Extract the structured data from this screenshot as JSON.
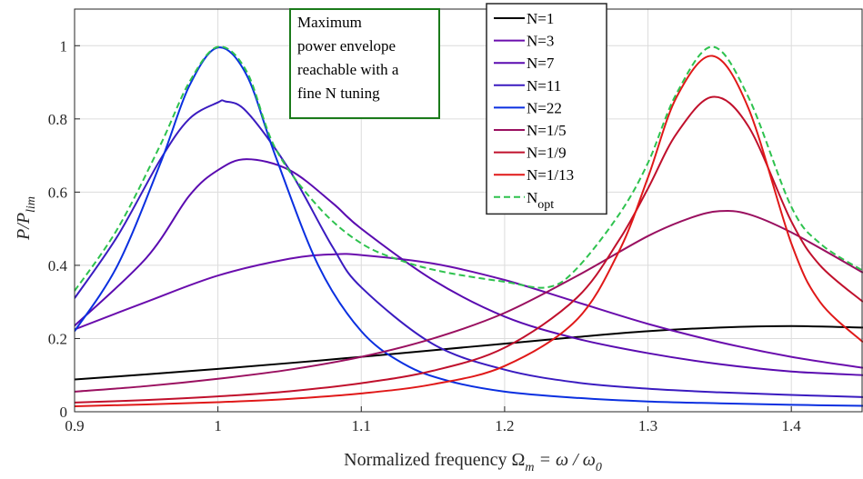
{
  "chart_data": {
    "type": "line",
    "xlabel_main": "Normalized frequency Ω",
    "xlabel_sub_m": "m",
    "xlabel_mid": " = ω / ω",
    "xlabel_sub_0": "0",
    "ylabel_main": "P/P",
    "ylabel_sub": "lim",
    "xlim": [
      0.9,
      1.45
    ],
    "ylim": [
      0,
      1.1
    ],
    "xticks": [
      0.9,
      1,
      1.1,
      1.2,
      1.3,
      1.4
    ],
    "xtick_labels": [
      "0.9",
      "1",
      "1.1",
      "1.2",
      "1.3",
      "1.4"
    ],
    "yticks": [
      0,
      0.2,
      0.4,
      0.6,
      0.8,
      1
    ],
    "ytick_labels": [
      "0",
      "0.2",
      "0.4",
      "0.6",
      "0.8",
      "1"
    ],
    "grid": true,
    "legend_position": "top-right",
    "annotation": [
      "Maximum",
      "power envelope",
      "reachable with a",
      "fine N tuning"
    ],
    "annotation_color": "#1a7a1a",
    "series": [
      {
        "name": "N=1",
        "color": "#000000",
        "dash": false,
        "x": [
          0.9,
          0.95,
          1.0,
          1.05,
          1.1,
          1.15,
          1.2,
          1.25,
          1.3,
          1.35,
          1.4,
          1.45
        ],
        "y": [
          0.088,
          0.102,
          0.117,
          0.133,
          0.15,
          0.168,
          0.186,
          0.204,
          0.22,
          0.23,
          0.234,
          0.23
        ]
      },
      {
        "name": "N=3",
        "color": "#6a0dad",
        "dash": false,
        "x": [
          0.9,
          0.95,
          1.0,
          1.05,
          1.08,
          1.1,
          1.15,
          1.2,
          1.25,
          1.3,
          1.35,
          1.4,
          1.45
        ],
        "y": [
          0.225,
          0.3,
          0.372,
          0.418,
          0.43,
          0.428,
          0.405,
          0.36,
          0.3,
          0.24,
          0.19,
          0.15,
          0.12
        ]
      },
      {
        "name": "N=7",
        "color": "#5a0bb0",
        "dash": false,
        "x": [
          0.9,
          0.95,
          0.98,
          1.0,
          1.02,
          1.05,
          1.08,
          1.1,
          1.15,
          1.2,
          1.25,
          1.3,
          1.35,
          1.4,
          1.45
        ],
        "y": [
          0.235,
          0.42,
          0.59,
          0.66,
          0.69,
          0.66,
          0.57,
          0.5,
          0.36,
          0.26,
          0.2,
          0.16,
          0.13,
          0.11,
          0.1
        ]
      },
      {
        "name": "N=11",
        "color": "#3a1bc0",
        "dash": false,
        "x": [
          0.9,
          0.93,
          0.96,
          0.98,
          1.0,
          1.005,
          1.02,
          1.05,
          1.08,
          1.1,
          1.15,
          1.2,
          1.25,
          1.3,
          1.35,
          1.4,
          1.45
        ],
        "y": [
          0.31,
          0.48,
          0.69,
          0.8,
          0.845,
          0.848,
          0.82,
          0.66,
          0.45,
          0.34,
          0.185,
          0.115,
          0.08,
          0.063,
          0.053,
          0.046,
          0.04
        ]
      },
      {
        "name": "N=22",
        "color": "#0a2fe0",
        "dash": false,
        "x": [
          0.9,
          0.93,
          0.96,
          0.98,
          1.0,
          1.02,
          1.04,
          1.07,
          1.1,
          1.13,
          1.16,
          1.2,
          1.25,
          1.3,
          1.35,
          1.4,
          1.45
        ],
        "y": [
          0.22,
          0.4,
          0.68,
          0.89,
          0.995,
          0.92,
          0.7,
          0.4,
          0.22,
          0.13,
          0.085,
          0.055,
          0.038,
          0.028,
          0.023,
          0.019,
          0.016
        ]
      },
      {
        "name": "N=1/5",
        "color": "#9a1060",
        "dash": false,
        "x": [
          0.9,
          0.95,
          1.0,
          1.05,
          1.1,
          1.15,
          1.2,
          1.25,
          1.3,
          1.33,
          1.35,
          1.37,
          1.4,
          1.45
        ],
        "y": [
          0.055,
          0.07,
          0.09,
          0.115,
          0.15,
          0.2,
          0.27,
          0.37,
          0.48,
          0.53,
          0.548,
          0.54,
          0.49,
          0.38
        ]
      },
      {
        "name": "N=1/9",
        "color": "#c0102c",
        "dash": false,
        "x": [
          0.9,
          0.95,
          1.0,
          1.05,
          1.1,
          1.15,
          1.2,
          1.25,
          1.28,
          1.3,
          1.32,
          1.345,
          1.37,
          1.4,
          1.42,
          1.45
        ],
        "y": [
          0.025,
          0.032,
          0.042,
          0.056,
          0.078,
          0.112,
          0.175,
          0.31,
          0.47,
          0.61,
          0.76,
          0.86,
          0.78,
          0.52,
          0.4,
          0.3
        ]
      },
      {
        "name": "N=1/13",
        "color": "#e01818",
        "dash": false,
        "x": [
          0.9,
          0.95,
          1.0,
          1.05,
          1.1,
          1.15,
          1.2,
          1.25,
          1.28,
          1.3,
          1.32,
          1.345,
          1.37,
          1.4,
          1.42,
          1.45
        ],
        "y": [
          0.015,
          0.02,
          0.026,
          0.035,
          0.05,
          0.075,
          0.125,
          0.25,
          0.44,
          0.64,
          0.86,
          0.972,
          0.83,
          0.46,
          0.3,
          0.19
        ]
      },
      {
        "name": "N",
        "name_sub": "opt",
        "color": "#2ec24e",
        "dash": true,
        "x": [
          0.9,
          0.93,
          0.96,
          0.98,
          1.0,
          1.02,
          1.04,
          1.07,
          1.1,
          1.13,
          1.16,
          1.2,
          1.23,
          1.25,
          1.28,
          1.3,
          1.32,
          1.345,
          1.37,
          1.4,
          1.42,
          1.45
        ],
        "y": [
          0.33,
          0.5,
          0.73,
          0.9,
          0.997,
          0.93,
          0.72,
          0.56,
          0.46,
          0.41,
          0.38,
          0.355,
          0.34,
          0.39,
          0.54,
          0.68,
          0.87,
          0.997,
          0.86,
          0.56,
          0.46,
          0.385
        ]
      }
    ]
  }
}
